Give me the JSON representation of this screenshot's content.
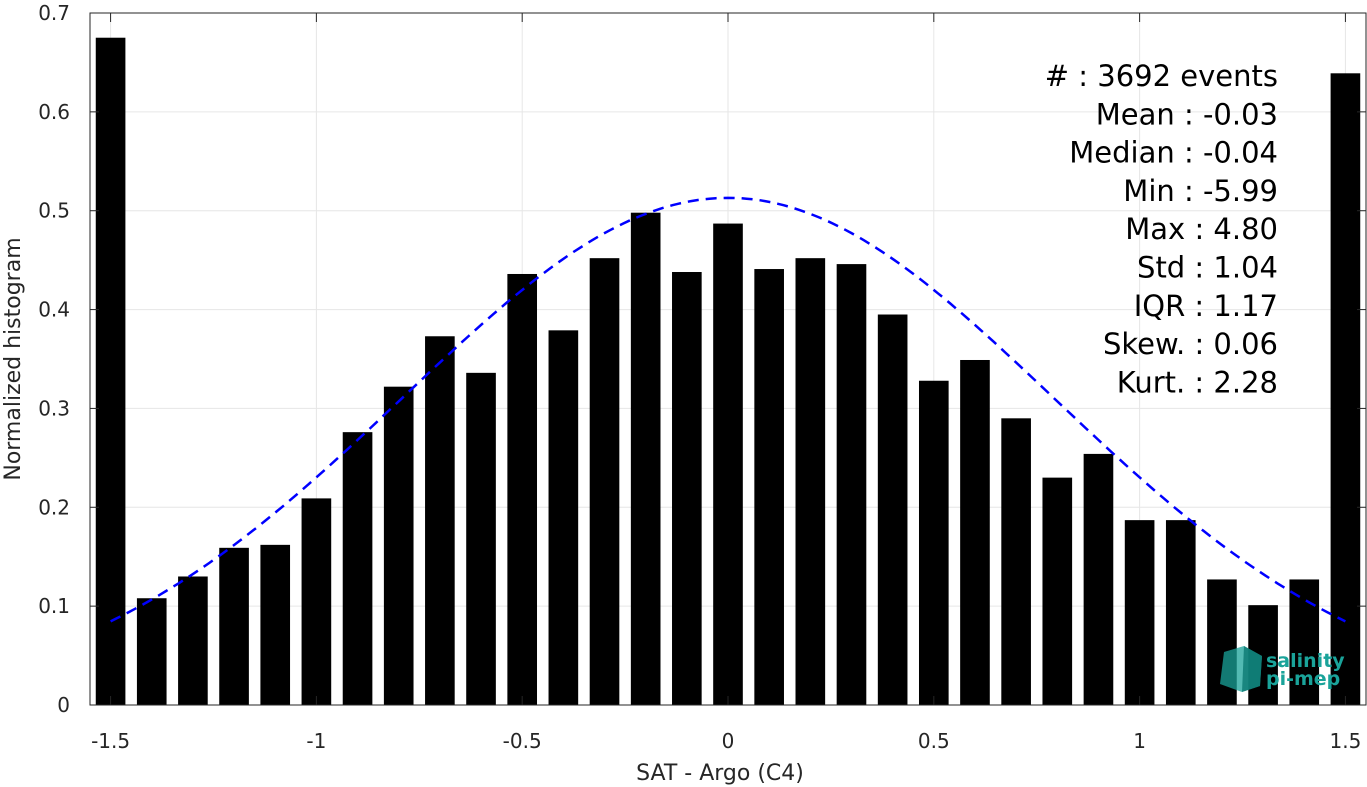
{
  "chart_data": {
    "type": "bar",
    "title": "",
    "xlabel": "SAT - Argo (C4)",
    "ylabel": "Normalized histogram",
    "xlim": [
      -1.55,
      1.55
    ],
    "ylim": [
      0,
      0.7
    ],
    "xticks": [
      -1.5,
      -1,
      -0.5,
      0,
      0.5,
      1,
      1.5
    ],
    "xtick_labels": [
      "-1.5",
      "-1",
      "-0.5",
      "0",
      "0.5",
      "1",
      "1.5"
    ],
    "yticks": [
      0,
      0.1,
      0.2,
      0.3,
      0.4,
      0.5,
      0.6,
      0.7
    ],
    "ytick_labels": [
      "0",
      "0.1",
      "0.2",
      "0.3",
      "0.4",
      "0.5",
      "0.6",
      "0.7"
    ],
    "grid": true,
    "bar_color": "#000000",
    "fit_color": "#0000ff",
    "bin_width": 0.1,
    "bars": {
      "x": [
        -1.5,
        -1.4,
        -1.3,
        -1.2,
        -1.1,
        -1.0,
        -0.9,
        -0.8,
        -0.7,
        -0.6,
        -0.5,
        -0.4,
        -0.3,
        -0.2,
        -0.1,
        0.0,
        0.1,
        0.2,
        0.3,
        0.4,
        0.5,
        0.6,
        0.7,
        0.8,
        0.9,
        1.0,
        1.1,
        1.2,
        1.3,
        1.4,
        1.5
      ],
      "values": [
        0.675,
        0.108,
        0.13,
        0.159,
        0.162,
        0.209,
        0.276,
        0.322,
        0.373,
        0.336,
        0.436,
        0.379,
        0.452,
        0.498,
        0.438,
        0.487,
        0.441,
        0.452,
        0.446,
        0.395,
        0.328,
        0.349,
        0.29,
        0.23,
        0.254,
        0.187,
        0.187,
        0.127,
        0.101,
        0.127,
        0.639
      ]
    },
    "fit": {
      "type": "gaussian",
      "x_range": [
        -1.5,
        1.5
      ],
      "peak": 0.513,
      "mean": 0.0,
      "sigma": 0.79,
      "style": "dashed"
    },
    "stats": [
      {
        "label": "#  ",
        "value": ": 3692 events"
      },
      {
        "label": "Mean ",
        "value": ": -0.03"
      },
      {
        "label": "Median ",
        "value": ": -0.04"
      },
      {
        "label": "Min ",
        "value": ": -5.99"
      },
      {
        "label": "Max ",
        "value": ": 4.80"
      },
      {
        "label": "Std ",
        "value": ": 1.04"
      },
      {
        "label": "IQR ",
        "value": ": 1.17"
      },
      {
        "label": "Skew. ",
        "value": ": 0.06"
      },
      {
        "label": "Kurt. ",
        "value": ": 2.28"
      }
    ]
  },
  "logo": {
    "line1": "salinity",
    "line2": "pi-mep",
    "color": "#1aa39a"
  }
}
